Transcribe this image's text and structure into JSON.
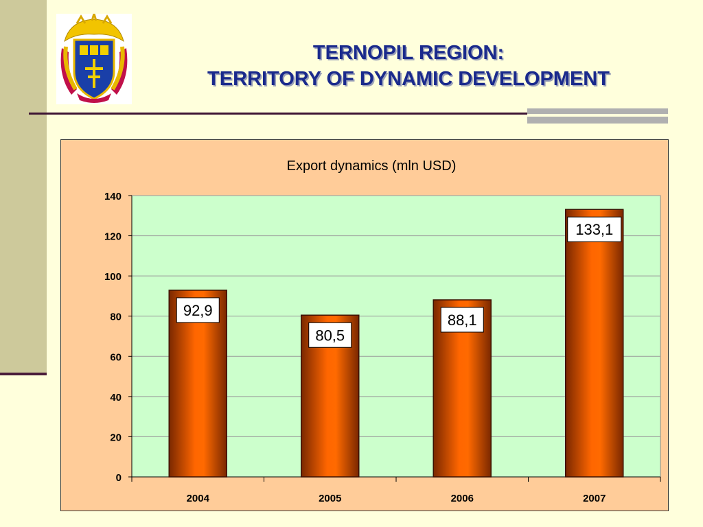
{
  "slide": {
    "title_line1": "TERNOPIL REGION:",
    "title_line2": "TERRITORY OF DYNAMIC DEVELOPMENT"
  },
  "colors": {
    "background": "#FFFFDC",
    "title": "#1A2A8C",
    "chart_frame": "#FFCC99",
    "plot_area": "#CCFFCC",
    "bar": "#FF6600",
    "bar_dark": "#7A2800"
  },
  "chart_data": {
    "type": "bar",
    "title": "Export dynamics (mln USD)",
    "categories": [
      "2004",
      "2005",
      "2006",
      "2007"
    ],
    "values": [
      92.9,
      80.5,
      88.1,
      133.1
    ],
    "data_labels": [
      "92,9",
      "80,5",
      "88,1",
      "133,1"
    ],
    "ylim": [
      0,
      140
    ],
    "yticks": [
      0,
      20,
      40,
      60,
      80,
      100,
      120,
      140
    ],
    "grid": true,
    "legend": "none"
  }
}
